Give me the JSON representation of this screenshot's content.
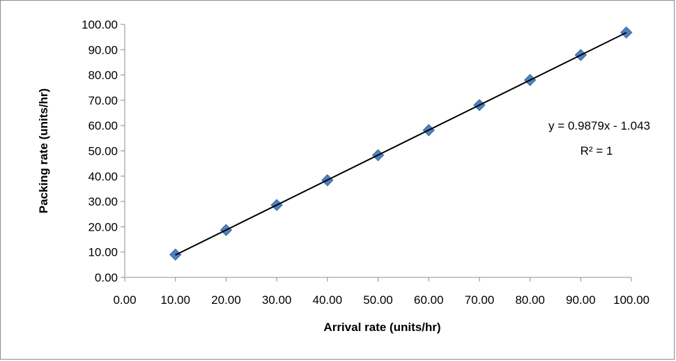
{
  "chart_data": {
    "type": "scatter",
    "title": "",
    "xlabel": "Arrival rate (units/hr)",
    "ylabel": "Packing rate (units/hr)",
    "xlim": [
      0,
      100
    ],
    "ylim": [
      0,
      100
    ],
    "x_ticks": [
      "0.00",
      "10.00",
      "20.00",
      "30.00",
      "40.00",
      "50.00",
      "60.00",
      "70.00",
      "80.00",
      "90.00",
      "100.00"
    ],
    "y_ticks": [
      "0.00",
      "10.00",
      "20.00",
      "30.00",
      "40.00",
      "50.00",
      "60.00",
      "70.00",
      "80.00",
      "90.00",
      "100.00"
    ],
    "grid": false,
    "legend": "none",
    "series": [
      {
        "marker": "diamond",
        "color": "#4f81bd",
        "x": [
          10,
          20,
          30,
          40,
          50,
          60,
          70,
          80,
          90,
          99
        ],
        "y": [
          9.0,
          18.7,
          28.6,
          38.4,
          48.3,
          58.2,
          68.1,
          78.0,
          87.9,
          96.8
        ]
      }
    ],
    "trendline": {
      "type": "linear",
      "slope": 0.9879,
      "intercept": -1.043,
      "x_range": [
        10,
        99
      ],
      "color": "#000000",
      "equation_label": "y = 0.9879x - 1.043",
      "r2_label": "R² = 1"
    }
  }
}
